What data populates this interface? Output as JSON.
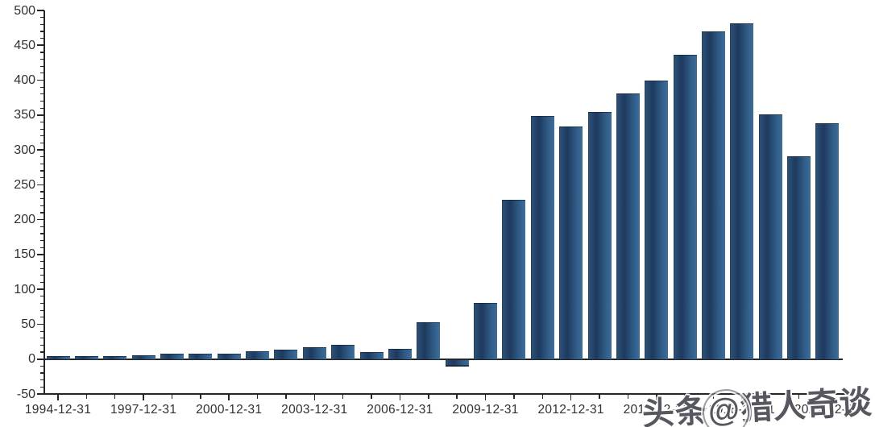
{
  "chart_data": {
    "type": "bar",
    "title": "",
    "xlabel": "",
    "ylabel": "",
    "categories": [
      "1994-12-31",
      "1995-12-31",
      "1996-12-31",
      "1997-12-31",
      "1998-12-31",
      "1999-12-31",
      "2000-12-31",
      "2001-12-31",
      "2002-12-31",
      "2003-12-31",
      "2004-12-31",
      "2005-12-31",
      "2006-12-31",
      "2007-12-31",
      "2008-12-31",
      "2009-12-31",
      "2010-12-31",
      "2011-12-31",
      "2012-12-31",
      "2013-12-31",
      "2014-12-31",
      "2015-12-31",
      "2016-12-31",
      "2017-12-31",
      "2018-12-31",
      "2019-12-31",
      "2020-12-31",
      "2021-12-31"
    ],
    "values": [
      4,
      4,
      4,
      6,
      8,
      8,
      8,
      11,
      13,
      17,
      21,
      10,
      15,
      53,
      -9,
      80,
      228,
      349,
      334,
      354,
      381,
      400,
      437,
      470,
      482,
      351,
      291,
      338
    ],
    "ylim": [
      -50,
      500
    ],
    "y_ticks": [
      500,
      450,
      400,
      350,
      300,
      250,
      200,
      150,
      100,
      50,
      0,
      -50
    ],
    "y_minor_step": 10,
    "x_label_every": 3,
    "x_shown_labels": [
      "1994-12-31",
      "1997-12-31",
      "2000-12-31",
      "2003-12-31",
      "2006-12-31",
      "2009-12-31",
      "2012-12-31",
      "2015-12-31",
      "2018-12-31",
      "2021-12-31"
    ],
    "grid": "off",
    "legend": "none",
    "bar_gradient": [
      "#2d527a",
      "#1e3a5e",
      "#3d6d9c"
    ]
  },
  "watermark": {
    "text": "头条@猎人奇谈",
    "prefix": "头条",
    "at_symbol": "@",
    "suffix": "猎人奇谈"
  },
  "colors": {
    "background": "#ffffff",
    "axis": "#262626",
    "tick_label": "#303030"
  }
}
